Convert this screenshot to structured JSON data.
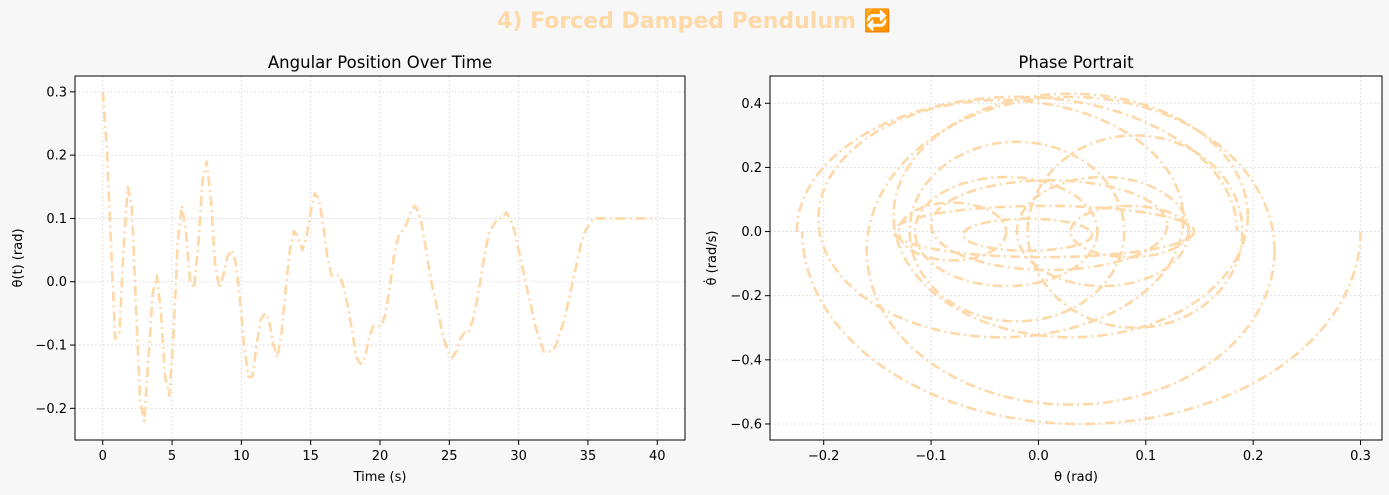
{
  "figure": {
    "suptitle": "4) Forced Damped Pendulum 🔁",
    "suptitle_color": "#ffd8a8",
    "background": "#f7f7f7",
    "line_color": "#ffd8a8"
  },
  "chart_data": [
    {
      "type": "line",
      "title": "Angular Position Over Time",
      "xlabel": "Time (s)",
      "ylabel": "θ(t) (rad)",
      "xlim": [
        -2,
        42
      ],
      "ylim": [
        -0.25,
        0.325
      ],
      "xticks": [
        0,
        5,
        10,
        15,
        20,
        25,
        30,
        35,
        40
      ],
      "xtick_labels": [
        "0",
        "5",
        "10",
        "15",
        "20",
        "25",
        "30",
        "35",
        "40"
      ],
      "yticks": [
        -0.2,
        -0.1,
        0.0,
        0.1,
        0.2,
        0.3
      ],
      "ytick_labels": [
        "−0.2",
        "−0.1",
        "0.0",
        "0.1",
        "0.2",
        "0.3"
      ],
      "grid": true,
      "line_style": "dash-dot",
      "series": [
        {
          "x": [
            0,
            0.3,
            0.6,
            0.9,
            1.2,
            1.5,
            1.8,
            2.1,
            2.4,
            2.7,
            3.0,
            3.3,
            3.6,
            3.9,
            4.2,
            4.5,
            4.8,
            5.1,
            5.4,
            5.7,
            6.0,
            6.3,
            6.6,
            6.9,
            7.2,
            7.5,
            7.8,
            8.1,
            8.4,
            8.7,
            9.0,
            9.3,
            9.6,
            9.9,
            10.2,
            10.5,
            10.8,
            11.1,
            11.4,
            11.7,
            12.0,
            12.3,
            12.6,
            12.9,
            13.2,
            13.5,
            13.8,
            14.1,
            14.4,
            14.7,
            15.0,
            15.3,
            15.6,
            15.9,
            16.2,
            16.5,
            16.8,
            17.1,
            17.4,
            17.7,
            18.0,
            18.3,
            18.6,
            18.9,
            19.2,
            19.5,
            19.8,
            20.1,
            20.4,
            20.7,
            21.0,
            21.3,
            21.6,
            21.9,
            22.2,
            22.5,
            22.8,
            23.1,
            23.4,
            23.7,
            24.0,
            24.3,
            24.6,
            24.9,
            25.2,
            25.5,
            25.8,
            26.1,
            26.4,
            26.7,
            27.0,
            27.3,
            27.6,
            27.9,
            28.2,
            28.5,
            28.8,
            29.1,
            29.4,
            29.7,
            30.0,
            30.3,
            30.6,
            30.9,
            31.2,
            31.5,
            31.8,
            32.1,
            32.4,
            32.7,
            33.0,
            33.3,
            33.6,
            33.9,
            34.2,
            34.5,
            34.8,
            35.1,
            35.4,
            35.7,
            36.0,
            36.3,
            36.6,
            36.9,
            37.2,
            37.5,
            37.8,
            38.1,
            38.4,
            38.7,
            39.0,
            39.3,
            39.6,
            39.9
          ],
          "values": [
            0.3,
            0.21,
            0.06,
            -0.09,
            -0.08,
            0.05,
            0.15,
            0.12,
            -0.04,
            -0.19,
            -0.22,
            -0.12,
            -0.02,
            0.01,
            -0.05,
            -0.15,
            -0.18,
            -0.09,
            0.06,
            0.12,
            0.08,
            0.0,
            -0.01,
            0.06,
            0.16,
            0.19,
            0.13,
            0.03,
            -0.01,
            0.01,
            0.04,
            0.05,
            0.03,
            -0.03,
            -0.1,
            -0.15,
            -0.15,
            -0.1,
            -0.06,
            -0.05,
            -0.06,
            -0.1,
            -0.12,
            -0.08,
            -0.01,
            0.05,
            0.08,
            0.07,
            0.05,
            0.07,
            0.11,
            0.14,
            0.13,
            0.09,
            0.04,
            0.01,
            0.01,
            0.01,
            -0.01,
            -0.04,
            -0.08,
            -0.12,
            -0.13,
            -0.12,
            -0.09,
            -0.07,
            -0.07,
            -0.07,
            -0.05,
            -0.01,
            0.04,
            0.07,
            0.08,
            0.09,
            0.11,
            0.12,
            0.11,
            0.08,
            0.04,
            0.0,
            -0.03,
            -0.06,
            -0.09,
            -0.11,
            -0.12,
            -0.11,
            -0.09,
            -0.08,
            -0.08,
            -0.06,
            -0.03,
            0.01,
            0.05,
            0.08,
            0.09,
            0.1,
            0.1,
            0.11,
            0.1,
            0.08,
            0.05,
            0.02,
            -0.01,
            -0.04,
            -0.07,
            -0.09,
            -0.11,
            -0.11,
            -0.11,
            -0.1,
            -0.08,
            -0.06,
            -0.03,
            0.0,
            0.03,
            0.06,
            0.08,
            0.09,
            0.1,
            0.1,
            0.1,
            0.1,
            0.1,
            0.1,
            0.1,
            0.1,
            0.1,
            0.1,
            0.1,
            0.1,
            0.1,
            0.1,
            0.1,
            0.1
          ]
        }
      ]
    },
    {
      "type": "line",
      "title": "Phase Portrait",
      "xlabel": "θ (rad)",
      "ylabel": "θ̇ (rad/s)",
      "xlim": [
        -0.25,
        0.32
      ],
      "ylim": [
        -0.65,
        0.485
      ],
      "xticks": [
        -0.2,
        -0.1,
        0.0,
        0.1,
        0.2,
        0.3
      ],
      "xtick_labels": [
        "−0.2",
        "−0.1",
        "0.0",
        "0.1",
        "0.2",
        "0.3"
      ],
      "yticks": [
        -0.6,
        -0.4,
        -0.2,
        0.0,
        0.2,
        0.4
      ],
      "ytick_labels": [
        "−0.6",
        "−0.4",
        "−0.2",
        "0.0",
        "0.2",
        "0.4"
      ],
      "grid": true,
      "line_style": "dash-dot",
      "loops": [
        {
          "cx": 0.04,
          "cy": 0.0,
          "rx": 0.26,
          "ry": 0.6,
          "start": 0.0,
          "end": 3.14
        },
        {
          "cx": -0.02,
          "cy": 0.0,
          "rx": 0.205,
          "ry": 0.42,
          "start": 3.14,
          "end": 6.28
        },
        {
          "cx": 0.03,
          "cy": -0.06,
          "rx": 0.19,
          "ry": 0.48,
          "start": 0.0,
          "end": 6.28
        },
        {
          "cx": 0.03,
          "cy": 0.05,
          "rx": 0.165,
          "ry": 0.38,
          "start": 0.0,
          "end": 6.28
        },
        {
          "cx": -0.035,
          "cy": 0.04,
          "rx": 0.17,
          "ry": 0.37,
          "start": 0.0,
          "end": 6.28
        },
        {
          "cx": 0.09,
          "cy": 0.0,
          "rx": 0.1,
          "ry": 0.3,
          "start": 0.0,
          "end": 6.28
        },
        {
          "cx": -0.02,
          "cy": 0.0,
          "rx": 0.1,
          "ry": 0.28,
          "start": 0.0,
          "end": 6.28
        },
        {
          "cx": 0.06,
          "cy": 0.0,
          "rx": 0.08,
          "ry": 0.17,
          "start": 0.0,
          "end": 6.28
        },
        {
          "cx": -0.03,
          "cy": 0.0,
          "rx": 0.085,
          "ry": 0.17,
          "start": 0.0,
          "end": 6.28
        },
        {
          "cx": 0.085,
          "cy": 0.0,
          "rx": 0.055,
          "ry": 0.08,
          "start": 0.0,
          "end": 6.28
        },
        {
          "cx": -0.08,
          "cy": 0.0,
          "rx": 0.05,
          "ry": 0.09,
          "start": 0.0,
          "end": 6.28
        },
        {
          "cx": 0.005,
          "cy": 0.0,
          "rx": 0.14,
          "ry": 0.08,
          "start": 0.0,
          "end": 6.28
        },
        {
          "cx": 0.01,
          "cy": 0.02,
          "rx": 0.11,
          "ry": 0.14,
          "start": 0.0,
          "end": 6.28
        },
        {
          "cx": -0.01,
          "cy": -0.01,
          "rx": 0.06,
          "ry": 0.05,
          "start": 0.0,
          "end": 6.28
        }
      ]
    }
  ]
}
